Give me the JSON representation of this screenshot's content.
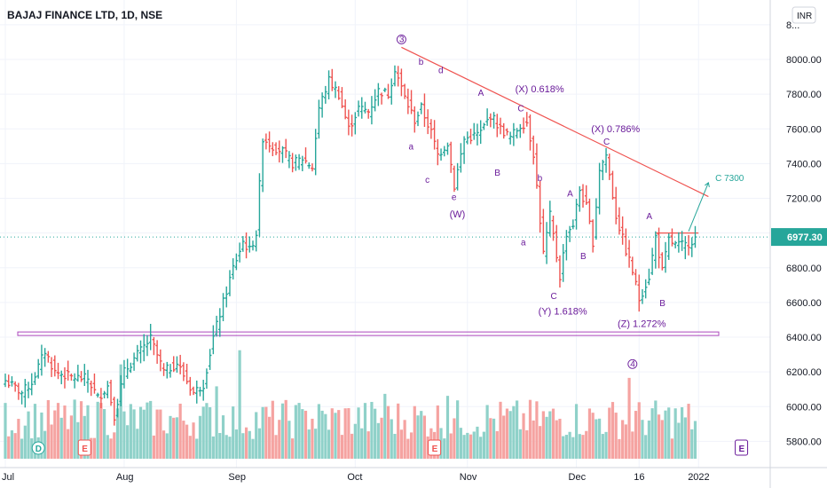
{
  "chart_data": {
    "type": "ohlc",
    "title": "BAJAJ FINANCE LTD, 1D, NSE",
    "currency": "INR",
    "last_price": "6977.30",
    "y_ticks": [
      "8...",
      "8000.00",
      "7800.00",
      "7600.00",
      "7400.00",
      "7200.00",
      "7000.00",
      "6800.00",
      "6600.00",
      "6400.00",
      "6200.00",
      "6000.00",
      "5800.00"
    ],
    "ylim": [
      5700,
      8230
    ],
    "x_ticks": [
      "Jul",
      "Aug",
      "Sep",
      "Oct",
      "Nov",
      "Dec",
      "16",
      "2022"
    ],
    "grid": true,
    "colors": {
      "up": "#26a69a",
      "down": "#ef5350",
      "vol_up": "#8fd1c9",
      "vol_down": "#f5a3a1",
      "annotation": "#6a1b9a",
      "trendline": "#ef5350",
      "target": "#26a69a"
    },
    "close_path": [
      [
        0,
        6150
      ],
      [
        5,
        6080
      ],
      [
        8,
        6140
      ],
      [
        12,
        6320
      ],
      [
        15,
        6200
      ],
      [
        20,
        6170
      ],
      [
        25,
        6160
      ],
      [
        28,
        6050
      ],
      [
        31,
        6120
      ],
      [
        33,
        5950
      ],
      [
        36,
        6200
      ],
      [
        40,
        6300
      ],
      [
        44,
        6390
      ],
      [
        48,
        6200
      ],
      [
        52,
        6250
      ],
      [
        57,
        6080
      ],
      [
        60,
        6130
      ],
      [
        63,
        6400
      ],
      [
        66,
        6600
      ],
      [
        69,
        6800
      ],
      [
        72,
        6950
      ],
      [
        74,
        6900
      ],
      [
        76,
        7000
      ],
      [
        78,
        7550
      ],
      [
        81,
        7500
      ],
      [
        84,
        7470
      ],
      [
        87,
        7400
      ],
      [
        90,
        7430
      ],
      [
        93,
        7380
      ],
      [
        95,
        7720
      ],
      [
        98,
        7880
      ],
      [
        101,
        7800
      ],
      [
        104,
        7600
      ],
      [
        107,
        7720
      ],
      [
        110,
        7700
      ],
      [
        113,
        7820
      ],
      [
        116,
        7800
      ],
      [
        118,
        7950
      ],
      [
        121,
        7780
      ],
      [
        124,
        7650
      ],
      [
        126,
        7720
      ],
      [
        129,
        7580
      ],
      [
        131,
        7450
      ],
      [
        134,
        7520
      ],
      [
        136,
        7270
      ],
      [
        139,
        7540
      ],
      [
        142,
        7560
      ],
      [
        144,
        7580
      ],
      [
        147,
        7680
      ],
      [
        150,
        7600
      ],
      [
        153,
        7550
      ],
      [
        156,
        7620
      ],
      [
        158,
        7640
      ],
      [
        160,
        7460
      ],
      [
        163,
        6880
      ],
      [
        165,
        7100
      ],
      [
        168,
        6750
      ],
      [
        170,
        7000
      ],
      [
        172,
        7050
      ],
      [
        174,
        7250
      ],
      [
        176,
        7150
      ],
      [
        178,
        6950
      ],
      [
        180,
        7370
      ],
      [
        182,
        7450
      ],
      [
        185,
        7100
      ],
      [
        188,
        6900
      ],
      [
        190,
        6780
      ],
      [
        192,
        6620
      ],
      [
        195,
        6750
      ],
      [
        197,
        6980
      ],
      [
        199,
        6780
      ],
      [
        201,
        6960
      ],
      [
        203,
        6930
      ],
      [
        206,
        6930
      ],
      [
        209,
        6970
      ]
    ],
    "trendline": [
      [
        120,
        8070
      ],
      [
        213,
        7210
      ]
    ],
    "horizontal_levels": [
      {
        "from": 0,
        "to": 213,
        "value": 6420
      },
      {
        "from": 197,
        "to": 210,
        "value": 7000
      }
    ],
    "target_arrow": [
      [
        207,
        7010
      ],
      [
        213,
        7290
      ]
    ],
    "wave_labels": [
      {
        "text": "3",
        "x": 120,
        "y": 8100,
        "circled": true
      },
      {
        "text": "b",
        "x": 126,
        "y": 7970
      },
      {
        "text": "d",
        "x": 132,
        "y": 7920
      },
      {
        "text": "a",
        "x": 123,
        "y": 7480
      },
      {
        "text": "c",
        "x": 128,
        "y": 7290
      },
      {
        "text": "e",
        "x": 136,
        "y": 7190
      },
      {
        "text": "(W)",
        "x": 137,
        "y": 7090
      },
      {
        "text": "A",
        "x": 144,
        "y": 7790
      },
      {
        "text": "C",
        "x": 156,
        "y": 7700
      },
      {
        "text": "B",
        "x": 149,
        "y": 7330
      },
      {
        "text": "a",
        "x": 157,
        "y": 6930
      },
      {
        "text": "b",
        "x": 162,
        "y": 7300
      },
      {
        "text": "C",
        "x": 166,
        "y": 6620
      },
      {
        "text": "A",
        "x": 171,
        "y": 7210
      },
      {
        "text": "B",
        "x": 175,
        "y": 6850
      },
      {
        "text": "C",
        "x": 182,
        "y": 7510
      },
      {
        "text": "A",
        "x": 195,
        "y": 7080
      },
      {
        "text": "B",
        "x": 199,
        "y": 6580
      },
      {
        "text": "4",
        "x": 190,
        "y": 6230,
        "circled": true
      }
    ],
    "ratio_labels": [
      {
        "text": "(X) 0.618%",
        "x": 162,
        "y": 7810
      },
      {
        "text": "(X) 0.786%",
        "x": 185,
        "y": 7580
      },
      {
        "text": "(Y) 1.618%",
        "x": 169,
        "y": 6530
      },
      {
        "text": "(Z) 1.272%",
        "x": 193,
        "y": 6460
      }
    ],
    "target_label": {
      "text": "C 7300",
      "x": 214,
      "y": 7300
    },
    "event_badges": [
      {
        "text": "D",
        "x": 10,
        "shape": "circle"
      },
      {
        "text": "E",
        "x": 24,
        "shape": "square"
      },
      {
        "text": "E",
        "x": 130,
        "shape": "square"
      },
      {
        "text": "E",
        "x": 223,
        "shape": "square"
      }
    ]
  }
}
